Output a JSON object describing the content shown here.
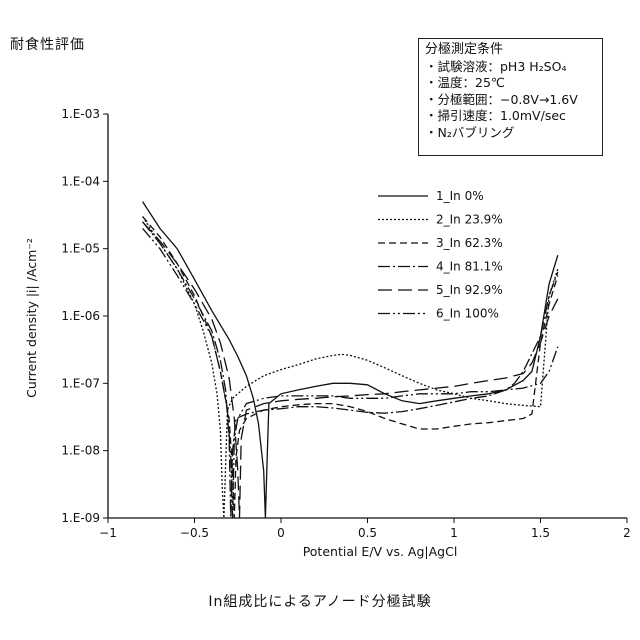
{
  "heading": "耐食性評価",
  "caption": "In組成比によるアノード分極試験",
  "conditions": {
    "title": "分極測定条件",
    "lines": [
      "・試験溶液：pH3 H₂SO₄",
      "・温度：25℃",
      "・分極範囲：−0.8V→1.6V",
      "・掃引速度：1.0mV/sec",
      "・N₂バブリング"
    ]
  },
  "chart_data": {
    "type": "line",
    "title": "",
    "xlabel": "Potential E/V vs. Ag|AgCl",
    "ylabel": "Current density |i| /Acm⁻²",
    "xlim": [
      -1,
      2
    ],
    "ylim_log10": [
      -9,
      -3
    ],
    "y_scale": "log",
    "grid": false,
    "legend_position": "right",
    "x_ticks": [
      "−1",
      "−0.5",
      "0",
      "0.5",
      "1",
      "1.5",
      "2"
    ],
    "x_tick_values": [
      -1,
      -0.5,
      0,
      0.5,
      1,
      1.5,
      2
    ],
    "y_ticks": [
      "1.E-03",
      "1.E-04",
      "1.E-05",
      "1.E-06",
      "1.E-07",
      "1.E-08",
      "1.E-09"
    ],
    "y_tick_log10": [
      -3,
      -4,
      -5,
      -6,
      -7,
      -8,
      -9
    ],
    "series": [
      {
        "name": "1_In 0%",
        "dash": "",
        "x": [
          -0.8,
          -0.7,
          -0.6,
          -0.5,
          -0.4,
          -0.3,
          -0.25,
          -0.2,
          -0.16,
          -0.13,
          -0.1,
          -0.09,
          -0.08,
          -0.07,
          0.0,
          0.1,
          0.2,
          0.3,
          0.4,
          0.5,
          0.6,
          0.7,
          0.8,
          0.9,
          1.0,
          1.1,
          1.2,
          1.3,
          1.4,
          1.45,
          1.5,
          1.55,
          1.6
        ],
        "y": [
          5e-05,
          2e-05,
          1e-05,
          3.5e-06,
          1.2e-06,
          4.5e-07,
          2.5e-07,
          1.3e-07,
          6e-08,
          2.5e-08,
          5e-09,
          1e-09,
          8e-09,
          5e-08,
          7e-08,
          8e-08,
          9e-08,
          1e-07,
          1e-07,
          9.5e-08,
          7e-08,
          5.5e-08,
          5e-08,
          5.5e-08,
          6e-08,
          6.5e-08,
          7e-08,
          8e-08,
          1.1e-07,
          1.5e-07,
          5e-07,
          3e-06,
          8e-06
        ]
      },
      {
        "name": "2_In 23.9%",
        "dash": "2,2",
        "x": [
          -0.8,
          -0.7,
          -0.6,
          -0.5,
          -0.45,
          -0.4,
          -0.37,
          -0.35,
          -0.34,
          -0.33,
          -0.31,
          -0.28,
          -0.2,
          -0.1,
          0.0,
          0.1,
          0.2,
          0.3,
          0.35,
          0.4,
          0.5,
          0.6,
          0.7,
          0.8,
          0.9,
          1.0,
          1.1,
          1.2,
          1.3,
          1.4,
          1.5,
          1.55,
          1.6
        ],
        "y": [
          3e-05,
          1.2e-05,
          5e-06,
          1.5e-06,
          6e-07,
          2e-07,
          7e-08,
          2e-08,
          3e-09,
          1e-09,
          4e-08,
          6e-08,
          9e-08,
          1.3e-07,
          1.6e-07,
          1.9e-07,
          2.3e-07,
          2.6e-07,
          2.7e-07,
          2.6e-07,
          2.2e-07,
          1.7e-07,
          1.3e-07,
          1e-07,
          8e-08,
          7e-08,
          6e-08,
          5.5e-08,
          5e-08,
          4.7e-08,
          4.5e-08,
          2e-06,
          5e-06
        ]
      },
      {
        "name": "3_In 62.3%",
        "dash": "7,4",
        "x": [
          -0.8,
          -0.7,
          -0.6,
          -0.5,
          -0.4,
          -0.35,
          -0.3,
          -0.28,
          -0.27,
          -0.26,
          -0.24,
          -0.2,
          -0.1,
          0.0,
          0.1,
          0.2,
          0.3,
          0.4,
          0.5,
          0.6,
          0.7,
          0.8,
          0.9,
          1.0,
          1.1,
          1.2,
          1.3,
          1.4,
          1.45,
          1.5,
          1.55,
          1.6
        ],
        "y": [
          3e-05,
          1.5e-05,
          6e-06,
          2e-06,
          5e-07,
          1.5e-07,
          3e-08,
          5e-09,
          1e-09,
          8e-09,
          2e-08,
          3e-08,
          4e-08,
          4.5e-08,
          4.8e-08,
          5e-08,
          5e-08,
          4.5e-08,
          3.8e-08,
          3e-08,
          2.5e-08,
          2.1e-08,
          2.1e-08,
          2.3e-08,
          2.5e-08,
          2.6e-08,
          2.8e-08,
          3e-08,
          3.5e-08,
          4e-07,
          1.5e-06,
          4e-06
        ]
      },
      {
        "name": "4_In 81.1%",
        "dash": "12,3,2,3",
        "x": [
          -0.8,
          -0.7,
          -0.6,
          -0.5,
          -0.4,
          -0.35,
          -0.32,
          -0.3,
          -0.29,
          -0.28,
          -0.26,
          -0.2,
          -0.1,
          0.0,
          0.1,
          0.2,
          0.3,
          0.4,
          0.5,
          0.6,
          0.7,
          0.8,
          0.9,
          1.0,
          1.1,
          1.2,
          1.3,
          1.35,
          1.4,
          1.5,
          1.55,
          1.6
        ],
        "y": [
          2.5e-05,
          1.2e-05,
          5e-06,
          1.8e-06,
          6e-07,
          2.2e-07,
          8e-08,
          1.5e-08,
          1e-09,
          1e-08,
          3e-08,
          3.5e-08,
          4e-08,
          4.2e-08,
          4.5e-08,
          4.5e-08,
          4.3e-08,
          4e-08,
          3.7e-08,
          3.6e-08,
          3.8e-08,
          4.2e-08,
          4.7e-08,
          5.3e-08,
          6e-08,
          6.5e-08,
          8e-08,
          1e-07,
          1.5e-07,
          5e-07,
          2e-06,
          4.5e-06
        ]
      },
      {
        "name": "5_In 92.9%",
        "dash": "14,6",
        "x": [
          -0.8,
          -0.7,
          -0.6,
          -0.5,
          -0.4,
          -0.35,
          -0.3,
          -0.27,
          -0.25,
          -0.24,
          -0.23,
          -0.2,
          -0.1,
          0.0,
          0.1,
          0.2,
          0.3,
          0.4,
          0.5,
          0.6,
          0.7,
          0.8,
          0.9,
          1.0,
          1.1,
          1.2,
          1.3,
          1.4,
          1.45,
          1.5,
          1.55,
          1.6
        ],
        "y": [
          2.5e-05,
          1.3e-05,
          6e-06,
          2.5e-06,
          9e-07,
          4e-07,
          1.2e-07,
          3e-08,
          5e-09,
          1e-09,
          1.5e-08,
          4e-08,
          5e-08,
          5.5e-08,
          5.8e-08,
          6e-08,
          6.3e-08,
          6.5e-08,
          6.8e-08,
          7e-08,
          7.5e-08,
          8e-08,
          8.5e-08,
          9e-08,
          1e-07,
          1.1e-07,
          1.2e-07,
          1.4e-07,
          2e-07,
          4e-07,
          1e-06,
          1.8e-06
        ]
      },
      {
        "name": "6_In 100%",
        "dash": "12,3,2,3,2,3",
        "x": [
          -0.8,
          -0.7,
          -0.6,
          -0.5,
          -0.4,
          -0.35,
          -0.31,
          -0.29,
          -0.28,
          -0.27,
          -0.25,
          -0.2,
          -0.1,
          0.0,
          0.1,
          0.2,
          0.3,
          0.4,
          0.5,
          0.6,
          0.7,
          0.8,
          0.9,
          1.0,
          1.1,
          1.2,
          1.3,
          1.4,
          1.5,
          1.55,
          1.6
        ],
        "y": [
          2e-05,
          1e-05,
          4e-06,
          1.5e-06,
          5e-07,
          1.5e-07,
          4e-08,
          8e-09,
          1e-09,
          1.5e-08,
          3e-08,
          5e-08,
          6e-08,
          6.5e-08,
          6.5e-08,
          6.5e-08,
          6.5e-08,
          6e-08,
          6e-08,
          6e-08,
          6.5e-08,
          7e-08,
          7e-08,
          7e-08,
          7.5e-08,
          7.5e-08,
          8e-08,
          8.5e-08,
          1e-07,
          1.5e-07,
          3.5e-07
        ]
      }
    ]
  }
}
